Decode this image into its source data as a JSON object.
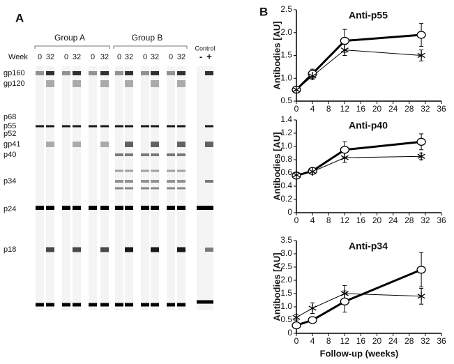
{
  "panel_a": {
    "label": "A",
    "groups": [
      "Group A",
      "Group B"
    ],
    "week_label": "Week",
    "lanes": [
      "0",
      "32",
      "0",
      "32",
      "0",
      "32",
      "0",
      "32",
      "0",
      "32",
      "0",
      "32"
    ],
    "control": {
      "label": "Control",
      "lanes": [
        "-",
        "+"
      ]
    },
    "proteins": [
      "gp160",
      "gp120",
      "p68",
      "p55",
      "p52",
      "gp41",
      "p40",
      "p34",
      "p24",
      "p18"
    ]
  },
  "panel_b": {
    "label": "B"
  },
  "chart_data": [
    {
      "type": "line",
      "title": "Anti-p55",
      "ylabel": "Antibodies [AU]",
      "x": [
        0,
        4,
        12,
        31
      ],
      "xlim": [
        0,
        36
      ],
      "xticks": [
        0,
        4,
        8,
        12,
        16,
        20,
        24,
        28,
        32,
        36
      ],
      "ylim": [
        0.5,
        2.5
      ],
      "yticks": [
        0.5,
        {
          "value": 1,
          "label": "1.0"
        },
        1.5,
        {
          "value": 2,
          "label": "2.0"
        },
        2.5
      ],
      "series": [
        {
          "color": "#000000",
          "marker": "circle",
          "line_width": 3,
          "values": [
            0.75,
            1.1,
            1.82,
            1.95
          ],
          "errors": [
            0.03,
            0.1,
            0.25,
            0.25
          ]
        },
        {
          "color": "#000000",
          "marker": "star",
          "line_width": 1,
          "values": [
            0.75,
            1.05,
            1.62,
            1.5
          ],
          "errors": [
            0.03,
            0.08,
            0.12,
            0.12
          ]
        }
      ]
    },
    {
      "type": "line",
      "title": "Anti-p40",
      "ylabel": "Antibodies [AU]",
      "x": [
        0,
        4,
        12,
        31
      ],
      "xlim": [
        0,
        36
      ],
      "xticks": [
        0,
        4,
        8,
        12,
        16,
        20,
        24,
        28,
        32,
        36
      ],
      "ylim": [
        0,
        1.4
      ],
      "yticks": [
        0,
        0.2,
        0.4,
        0.6,
        0.8,
        {
          "value": 1,
          "label": "1.0"
        },
        1.2,
        1.4
      ],
      "series": [
        {
          "color": "#000000",
          "marker": "circle",
          "line_width": 3,
          "values": [
            0.56,
            0.63,
            0.95,
            1.07
          ],
          "errors": [
            0.02,
            0.03,
            0.12,
            0.12
          ]
        },
        {
          "color": "#000000",
          "marker": "star",
          "line_width": 1,
          "values": [
            0.57,
            0.62,
            0.83,
            0.85
          ],
          "errors": [
            0.02,
            0.03,
            0.07,
            0.05
          ]
        }
      ]
    },
    {
      "type": "line",
      "title": "Anti-p34",
      "ylabel": "Antibodies [AU]",
      "xlabel": "Follow-up (weeks)",
      "x": [
        0,
        4,
        12,
        31
      ],
      "xlim": [
        0,
        36
      ],
      "xticks": [
        0,
        4,
        8,
        12,
        16,
        20,
        24,
        28,
        32,
        36
      ],
      "ylim": [
        0,
        3.5
      ],
      "yticks": [
        0,
        0.5,
        {
          "value": 1,
          "label": "1.0"
        },
        1.5,
        {
          "value": 2,
          "label": "2.0"
        },
        2.5,
        {
          "value": 3,
          "label": "3.0"
        },
        3.5
      ],
      "series": [
        {
          "color": "#000000",
          "marker": "circle",
          "line_width": 3,
          "values": [
            0.3,
            0.5,
            1.2,
            2.4
          ],
          "errors": [
            0.05,
            0.05,
            0.4,
            0.65
          ]
        },
        {
          "color": "#000000",
          "marker": "star",
          "line_width": 1,
          "values": [
            0.6,
            0.95,
            1.5,
            1.4
          ],
          "errors": [
            0.1,
            0.2,
            0.3,
            0.3
          ]
        }
      ]
    }
  ]
}
